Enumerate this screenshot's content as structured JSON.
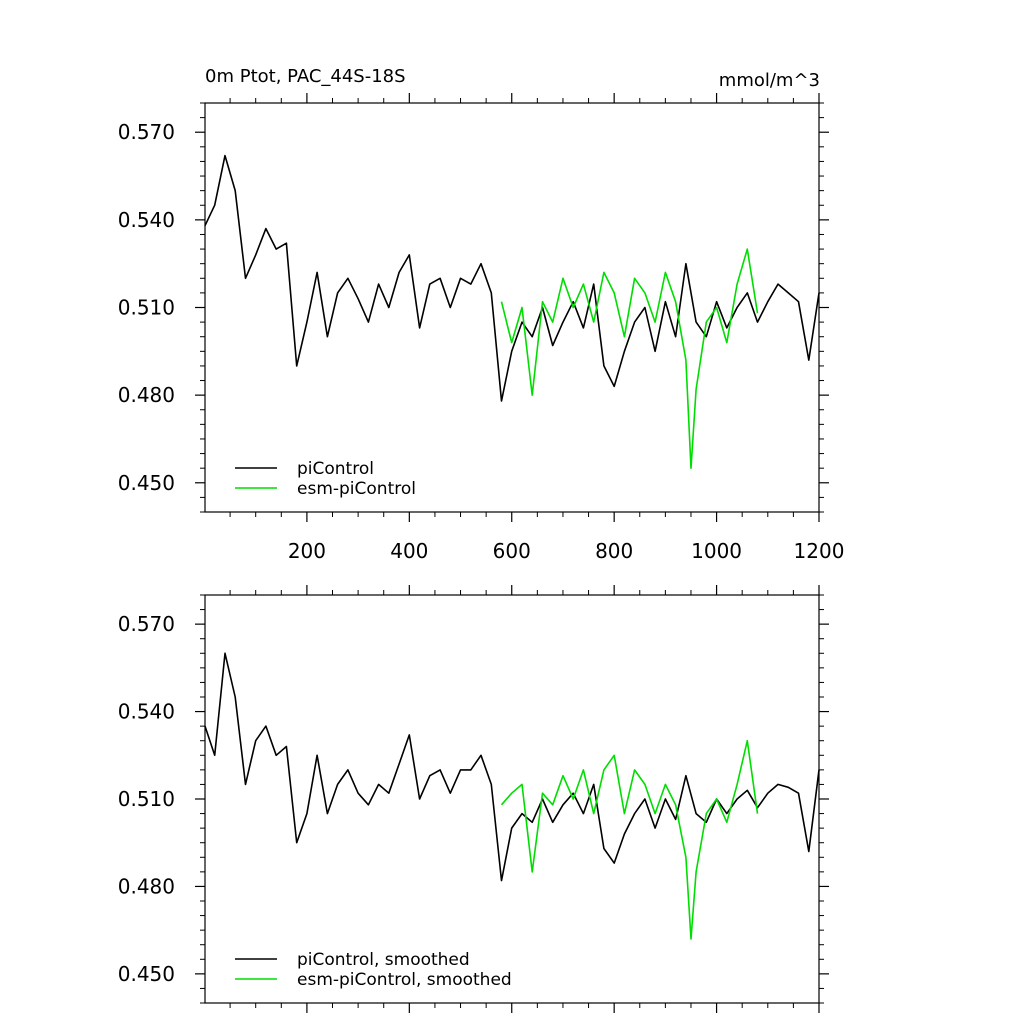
{
  "chart_data": [
    {
      "type": "line",
      "title_left": "0m Ptot, PAC_44S-18S",
      "title_right": "mmol/m^3",
      "xlim": [
        1,
        1200
      ],
      "ylim": [
        0.44,
        0.58
      ],
      "x_ticks": [
        200,
        400,
        600,
        800,
        1000,
        1200
      ],
      "x_tick_labels": [
        "200",
        "400",
        "600",
        "800",
        "1000",
        "1200"
      ],
      "y_ticks": [
        0.45,
        0.48,
        0.51,
        0.54,
        0.57
      ],
      "y_tick_labels": [
        "0.450",
        "0.480",
        "0.510",
        "0.540",
        "0.570"
      ],
      "legend_position": "bottom-left",
      "series": [
        {
          "name": "piControl",
          "color": "#000000",
          "x": [
            1,
            20,
            40,
            60,
            80,
            100,
            120,
            140,
            160,
            180,
            200,
            220,
            240,
            260,
            280,
            300,
            320,
            340,
            360,
            380,
            400,
            420,
            440,
            460,
            480,
            500,
            520,
            540,
            560,
            580,
            600,
            620,
            640,
            660,
            680,
            700,
            720,
            740,
            760,
            780,
            800,
            820,
            840,
            860,
            880,
            900,
            920,
            940,
            960,
            980,
            1000,
            1020,
            1040,
            1060,
            1080,
            1100,
            1120,
            1140,
            1160,
            1180,
            1200
          ],
          "y": [
            0.538,
            0.545,
            0.562,
            0.55,
            0.52,
            0.528,
            0.537,
            0.53,
            0.532,
            0.49,
            0.505,
            0.522,
            0.5,
            0.515,
            0.52,
            0.513,
            0.505,
            0.518,
            0.51,
            0.522,
            0.528,
            0.503,
            0.518,
            0.52,
            0.51,
            0.52,
            0.518,
            0.525,
            0.515,
            0.478,
            0.495,
            0.505,
            0.5,
            0.51,
            0.497,
            0.505,
            0.512,
            0.503,
            0.518,
            0.49,
            0.483,
            0.495,
            0.505,
            0.51,
            0.495,
            0.512,
            0.5,
            0.525,
            0.505,
            0.5,
            0.512,
            0.503,
            0.51,
            0.515,
            0.505,
            0.512,
            0.518,
            0.515,
            0.512,
            0.492,
            0.515
          ]
        },
        {
          "name": "esm-piControl",
          "color": "#00dd00",
          "x": [
            580,
            600,
            620,
            640,
            660,
            680,
            700,
            720,
            740,
            760,
            780,
            800,
            820,
            840,
            860,
            880,
            900,
            920,
            940,
            950,
            960,
            980,
            1000,
            1020,
            1040,
            1060,
            1080
          ],
          "y": [
            0.512,
            0.498,
            0.51,
            0.48,
            0.512,
            0.505,
            0.52,
            0.51,
            0.518,
            0.505,
            0.522,
            0.515,
            0.5,
            0.52,
            0.515,
            0.505,
            0.522,
            0.512,
            0.492,
            0.455,
            0.482,
            0.505,
            0.51,
            0.498,
            0.518,
            0.53,
            0.508
          ]
        }
      ]
    },
    {
      "type": "line",
      "xlim": [
        1,
        1200
      ],
      "ylim": [
        0.44,
        0.58
      ],
      "x_ticks": [
        200,
        400,
        600,
        800,
        1000,
        1200
      ],
      "y_ticks": [
        0.45,
        0.48,
        0.51,
        0.54,
        0.57
      ],
      "y_tick_labels": [
        "0.450",
        "0.480",
        "0.510",
        "0.540",
        "0.570"
      ],
      "legend_position": "bottom-left",
      "series": [
        {
          "name": "piControl, smoothed",
          "color": "#000000",
          "x": [
            1,
            20,
            40,
            60,
            80,
            100,
            120,
            140,
            160,
            180,
            200,
            220,
            240,
            260,
            280,
            300,
            320,
            340,
            360,
            380,
            400,
            420,
            440,
            460,
            480,
            500,
            520,
            540,
            560,
            580,
            600,
            620,
            640,
            660,
            680,
            700,
            720,
            740,
            760,
            780,
            800,
            820,
            840,
            860,
            880,
            900,
            920,
            940,
            960,
            980,
            1000,
            1020,
            1040,
            1060,
            1080,
            1100,
            1120,
            1140,
            1160,
            1180,
            1200
          ],
          "y": [
            0.535,
            0.525,
            0.56,
            0.545,
            0.515,
            0.53,
            0.535,
            0.525,
            0.528,
            0.495,
            0.505,
            0.525,
            0.505,
            0.515,
            0.52,
            0.512,
            0.508,
            0.515,
            0.512,
            0.522,
            0.532,
            0.51,
            0.518,
            0.52,
            0.512,
            0.52,
            0.52,
            0.525,
            0.515,
            0.482,
            0.5,
            0.505,
            0.502,
            0.51,
            0.502,
            0.508,
            0.512,
            0.505,
            0.515,
            0.493,
            0.488,
            0.498,
            0.505,
            0.51,
            0.5,
            0.51,
            0.503,
            0.518,
            0.505,
            0.502,
            0.51,
            0.505,
            0.51,
            0.513,
            0.507,
            0.512,
            0.515,
            0.514,
            0.512,
            0.492,
            0.52
          ]
        },
        {
          "name": "esm-piControl, smoothed",
          "color": "#00dd00",
          "x": [
            580,
            600,
            620,
            640,
            660,
            680,
            700,
            720,
            740,
            760,
            780,
            800,
            820,
            840,
            860,
            880,
            900,
            920,
            940,
            950,
            960,
            980,
            1000,
            1020,
            1040,
            1060,
            1080
          ],
          "y": [
            0.508,
            0.512,
            0.515,
            0.485,
            0.512,
            0.508,
            0.518,
            0.51,
            0.52,
            0.505,
            0.52,
            0.525,
            0.505,
            0.52,
            0.515,
            0.505,
            0.515,
            0.508,
            0.49,
            0.462,
            0.485,
            0.505,
            0.51,
            0.502,
            0.515,
            0.53,
            0.505
          ]
        }
      ]
    }
  ]
}
